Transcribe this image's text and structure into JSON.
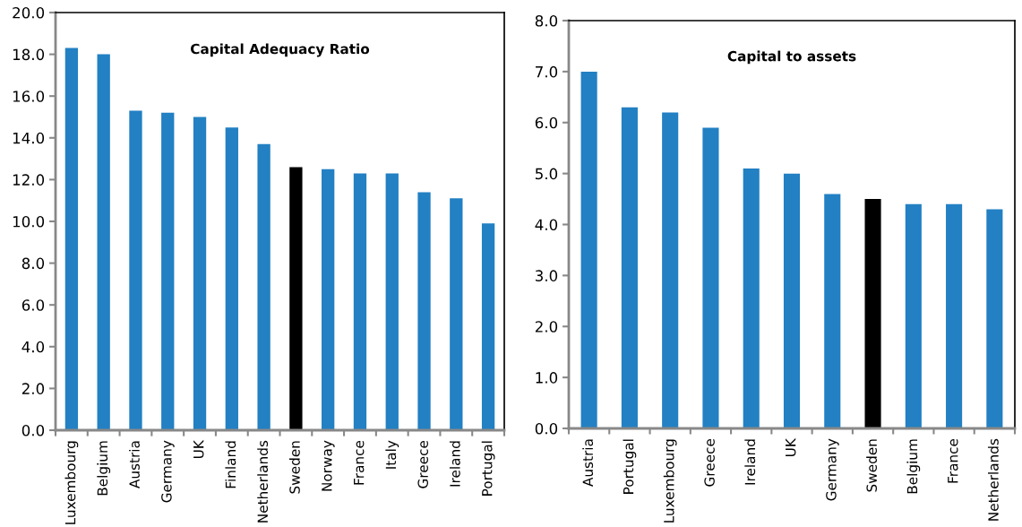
{
  "chart_data": [
    {
      "type": "bar",
      "title": "Capital Adequacy Ratio",
      "categories": [
        "Luxembourg",
        "Belgium",
        "Austria",
        "Germany",
        "UK",
        "Finland",
        "Netherlands",
        "Sweden",
        "Norway",
        "France",
        "Italy",
        "Greece",
        "Ireland",
        "Portugal"
      ],
      "values": [
        18.3,
        18.0,
        15.3,
        15.2,
        15.0,
        14.5,
        13.7,
        12.6,
        12.5,
        12.3,
        12.3,
        11.4,
        11.1,
        9.9
      ],
      "colors": [
        "#2280c3",
        "#2280c3",
        "#2280c3",
        "#2280c3",
        "#2280c3",
        "#2280c3",
        "#2280c3",
        "#000000",
        "#2280c3",
        "#2280c3",
        "#2280c3",
        "#2280c3",
        "#2280c3",
        "#2280c3"
      ],
      "ylim": [
        0,
        20
      ],
      "yticks": [
        {
          "value": 0,
          "label": "0.0"
        },
        {
          "value": 2,
          "label": "2.0"
        },
        {
          "value": 4,
          "label": "4.0"
        },
        {
          "value": 6,
          "label": "6.0"
        },
        {
          "value": 8,
          "label": "8.0"
        },
        {
          "value": 10,
          "label": "10.0"
        },
        {
          "value": 12,
          "label": "12.0"
        },
        {
          "value": 14,
          "label": "14.0"
        },
        {
          "value": 16,
          "label": "16.0"
        },
        {
          "value": 18,
          "label": "18.0"
        },
        {
          "value": 20,
          "label": "20.0"
        }
      ],
      "grid": false,
      "legend": false
    },
    {
      "type": "bar",
      "title": "Capital to assets",
      "categories": [
        "Austria",
        "Portugal",
        "Luxembourg",
        "Greece",
        "Ireland",
        "UK",
        "Germany",
        "Sweden",
        "Belgium",
        "France",
        "Netherlands"
      ],
      "values": [
        7.0,
        6.3,
        6.2,
        5.9,
        5.1,
        5.0,
        4.6,
        4.5,
        4.4,
        4.4,
        4.3
      ],
      "colors": [
        "#2280c3",
        "#2280c3",
        "#2280c3",
        "#2280c3",
        "#2280c3",
        "#2280c3",
        "#2280c3",
        "#000000",
        "#2280c3",
        "#2280c3",
        "#2280c3"
      ],
      "ylim": [
        0,
        8
      ],
      "yticks": [
        {
          "value": 0,
          "label": "0.0"
        },
        {
          "value": 1,
          "label": "1.0"
        },
        {
          "value": 2,
          "label": "2.0"
        },
        {
          "value": 3,
          "label": "3.0"
        },
        {
          "value": 4,
          "label": "4.0"
        },
        {
          "value": 5,
          "label": "5.0"
        },
        {
          "value": 6,
          "label": "6.0"
        },
        {
          "value": 7,
          "label": "7.0"
        },
        {
          "value": 8,
          "label": "8.0"
        }
      ],
      "grid": false,
      "legend": false
    }
  ]
}
